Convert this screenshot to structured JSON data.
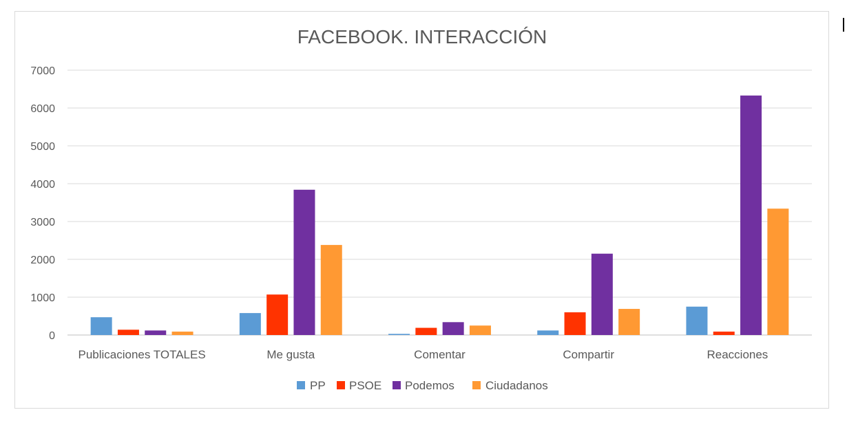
{
  "chart_data": {
    "type": "bar",
    "title": "FACEBOOK. INTERACCIÓN",
    "xlabel": "",
    "ylabel": "",
    "ylim": [
      0,
      7000
    ],
    "yticks": [
      0,
      1000,
      2000,
      3000,
      4000,
      5000,
      6000,
      7000
    ],
    "grid": true,
    "legend_position": "bottom",
    "categories": [
      "Publicaciones TOTALES",
      "Me gusta",
      "Comentar",
      "Compartir",
      "Reacciones"
    ],
    "series": [
      {
        "name": "PP",
        "color": "#5b9bd5",
        "values": [
          470,
          580,
          30,
          120,
          750
        ]
      },
      {
        "name": "PSOE",
        "color": "#ff3300",
        "values": [
          140,
          1070,
          190,
          600,
          90
        ]
      },
      {
        "name": "Podemos",
        "color": "#7030a0",
        "values": [
          120,
          3840,
          340,
          2150,
          6330
        ]
      },
      {
        "name": "Ciudadanos",
        "color": "#ff9933",
        "values": [
          90,
          2380,
          250,
          690,
          3340
        ]
      }
    ]
  }
}
